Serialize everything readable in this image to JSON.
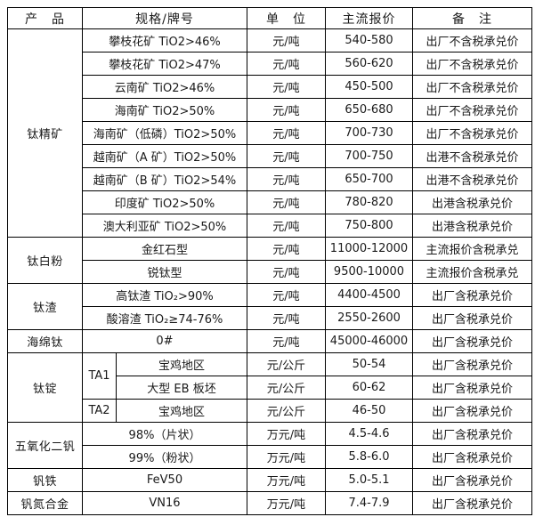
{
  "table": {
    "headers": [
      "产　品",
      "规格/牌号",
      "单　位",
      "主流报价",
      "备　注"
    ],
    "rows": [
      {
        "product": "钛精矿",
        "product_span": 9,
        "spec": "攀枝花矿 TiO2>46%",
        "spec_span": 2,
        "unit": "元/吨",
        "price": "540-580",
        "note": "出厂不含税承兑价"
      },
      {
        "spec": "攀枝花矿 TiO2>47%",
        "spec_span": 2,
        "unit": "元/吨",
        "price": "560-620",
        "note": "出厂不含税承兑价"
      },
      {
        "spec": "云南矿 TiO2>46%",
        "spec_span": 2,
        "unit": "元/吨",
        "price": "450-500",
        "note": "出厂不含税承兑价"
      },
      {
        "spec": "海南矿 TiO2>50%",
        "spec_span": 2,
        "unit": "元/吨",
        "price": "650-680",
        "note": "出厂不含税承兑价"
      },
      {
        "spec": "海南矿（低磷）TiO2>50%",
        "spec_span": 2,
        "unit": "元/吨",
        "price": "700-730",
        "note": "出厂不含税承兑价"
      },
      {
        "spec": "越南矿（A 矿）TiO2>50%",
        "spec_span": 2,
        "unit": "元/吨",
        "price": "700-750",
        "note": "出港不含税承兑价"
      },
      {
        "spec": "越南矿（B 矿）TiO2>54%",
        "spec_span": 2,
        "unit": "元/吨",
        "price": "650-700",
        "note": "出港不含税承兑价"
      },
      {
        "spec": "印度矿 TiO2>50%",
        "spec_span": 2,
        "unit": "元/吨",
        "price": "780-820",
        "note": "出港含税承兑价"
      },
      {
        "spec": "澳大利亚矿 TiO2>50%",
        "spec_span": 2,
        "unit": "元/吨",
        "price": "750-800",
        "note": "出港含税承兑价"
      },
      {
        "product": "钛白粉",
        "product_span": 2,
        "spec": "金红石型",
        "spec_span": 2,
        "unit": "元/吨",
        "price": "11000-12000",
        "note": "主流报价含税承兑"
      },
      {
        "spec": "锐钛型",
        "spec_span": 2,
        "unit": "元/吨",
        "price": "9500-10000",
        "note": "主流报价含税承兑"
      },
      {
        "product": "钛渣",
        "product_span": 2,
        "spec": "高钛渣 TiO₂>90%",
        "spec_span": 2,
        "unit": "元/吨",
        "price": "4400-4500",
        "note": "出厂含税承兑价"
      },
      {
        "spec": "酸溶渣 TiO₂≥74-76%",
        "spec_span": 2,
        "unit": "元/吨",
        "price": "2550-2600",
        "note": "出厂含税承兑价"
      },
      {
        "product": "海绵钛",
        "product_span": 1,
        "spec": "0#",
        "spec_span": 2,
        "unit": "元/吨",
        "price": "45000-46000",
        "note": "出厂含税承兑价"
      },
      {
        "product": "钛锭",
        "product_span": 3,
        "ta": "TA1",
        "ta_span": 2,
        "spec": "宝鸡地区",
        "spec_span": 1,
        "unit": "元/公斤",
        "price": "50-54",
        "note": "出厂含税承兑价"
      },
      {
        "spec": "大型 EB 板坯",
        "spec_span": 1,
        "unit": "元/公斤",
        "price": "60-62",
        "note": "出厂含税承兑价"
      },
      {
        "ta": "TA2",
        "ta_span": 1,
        "spec": "宝鸡地区",
        "spec_span": 1,
        "unit": "元/公斤",
        "price": "46-50",
        "note": "出厂含税承兑价"
      },
      {
        "product": "五氧化二钒",
        "product_span": 2,
        "spec": "98%（片状）",
        "spec_span": 2,
        "unit": "万元/吨",
        "price": "4.5-4.6",
        "note": "出厂含税承兑价"
      },
      {
        "spec": "99%（粉状）",
        "spec_span": 2,
        "unit": "万元/吨",
        "price": "5.8-6.0",
        "note": "出厂含税承兑价"
      },
      {
        "product": "钒铁",
        "product_span": 1,
        "spec": "FeV50",
        "spec_span": 2,
        "unit": "万元/吨",
        "price": "5.0-5.1",
        "note": "出厂含税承兑价"
      },
      {
        "product": "钒氮合金",
        "product_span": 1,
        "spec": "VN16",
        "spec_span": 2,
        "unit": "万元/吨",
        "price": "7.4-7.9",
        "note": "出厂含税承兑价"
      }
    ]
  },
  "colors": {
    "border": "#000000",
    "text": "#1a1a1a",
    "background": "#ffffff"
  }
}
